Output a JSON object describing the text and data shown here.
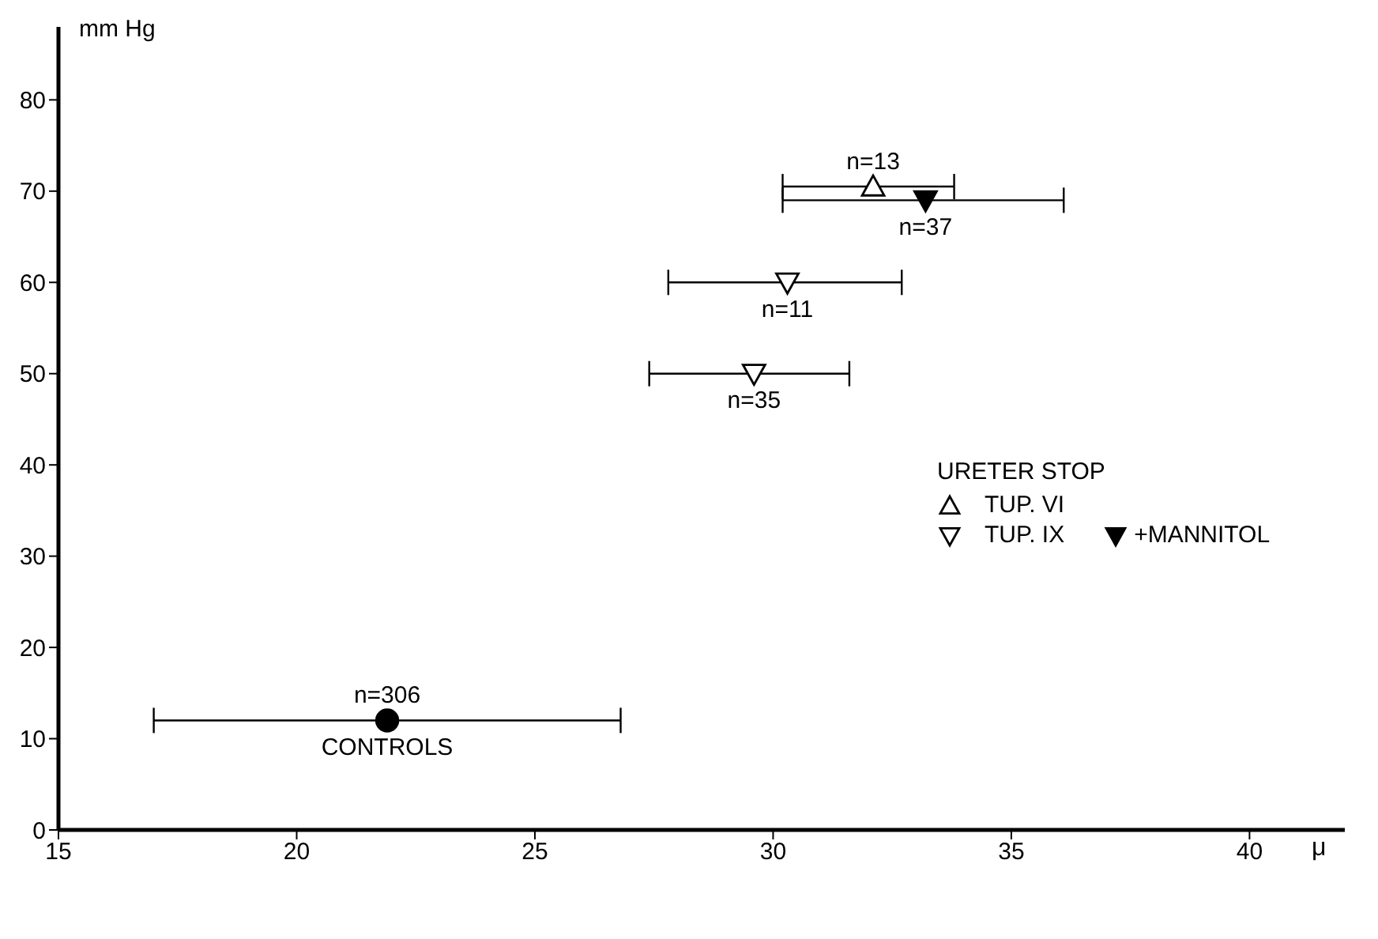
{
  "chart_data": {
    "type": "scatter",
    "xlabel": "μ",
    "ylabel": "mm Hg",
    "legend_title": "URETER STOP",
    "legend": "right",
    "xlim": [
      15,
      42
    ],
    "xticks": [
      15,
      20,
      25,
      30,
      35,
      40
    ],
    "ylim": [
      0,
      88
    ],
    "yticks": [
      0,
      10,
      20,
      30,
      40,
      50,
      60,
      70,
      80
    ],
    "series": [
      {
        "name": "TUP. VI",
        "marker": "triangle",
        "color": "#ffffff",
        "x": [
          32.1
        ],
        "values": [
          70.5
        ],
        "xerrors": [
          [
            30.2,
            33.8
          ]
        ]
      },
      {
        "name": "TUP. IX",
        "marker": "triangle-down",
        "color": "#ffffff",
        "x": [
          30.3,
          29.6
        ],
        "values": [
          60,
          50
        ],
        "xerrors": [
          [
            27.8,
            32.7
          ],
          [
            27.4,
            31.6
          ]
        ]
      },
      {
        "name": "+MANNITOL",
        "marker": "triangle-down",
        "color": "#000000",
        "x": [
          33.2
        ],
        "values": [
          69
        ],
        "xerrors": [
          [
            30.2,
            36.1
          ]
        ]
      },
      {
        "marker": "circle",
        "color": "#000000",
        "x": [
          21.9
        ],
        "values": [
          12
        ],
        "xerrors": [
          [
            17.0,
            26.8
          ]
        ]
      }
    ],
    "annotations": [
      {
        "text": "n=13",
        "x": 32.1,
        "y": 70.5
      },
      {
        "text": "n=37",
        "x": 33.2,
        "y": 69
      },
      {
        "text": "n=11",
        "x": 30.3,
        "y": 60
      },
      {
        "text": "n=35",
        "x": 29.6,
        "y": 50
      },
      {
        "text": "n=306",
        "x": 21.9,
        "y": 12
      },
      {
        "text": "CONTROLS",
        "x": 21.9,
        "y": 12
      }
    ]
  }
}
